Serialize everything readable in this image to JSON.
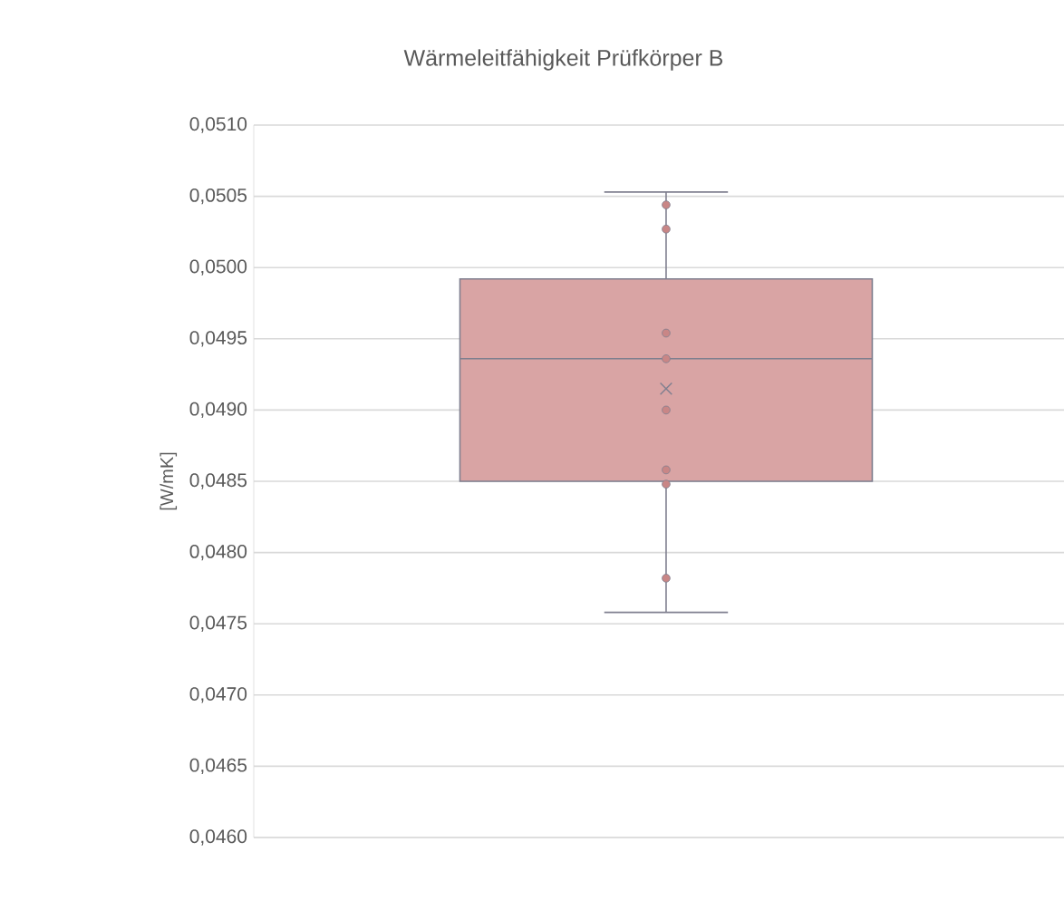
{
  "chart_data": {
    "type": "box",
    "title": "Wärmeleitfähigkeit Prüfkörper B",
    "ylabel": "[W/mK]",
    "categories": [
      null
    ],
    "boxes": [
      {
        "low": 0.04758,
        "q1": 0.0485,
        "median": 0.04936,
        "q3": 0.04992,
        "high": 0.05053,
        "mean": 0.04915,
        "outliers": [
          0.05044,
          0.05027,
          0.04954,
          0.04936,
          0.049,
          0.04858,
          0.04848,
          0.04782
        ]
      }
    ],
    "color": "#d9a4a4",
    "ylim": [
      0.046,
      0.051
    ],
    "yticks": [
      {
        "value": 0.046,
        "label": "0,0460"
      },
      {
        "value": 0.0465,
        "label": "0,0465"
      },
      {
        "value": 0.047,
        "label": "0,0470"
      },
      {
        "value": 0.0475,
        "label": "0,0475"
      },
      {
        "value": 0.048,
        "label": "0,0480"
      },
      {
        "value": 0.0485,
        "label": "0,0485"
      },
      {
        "value": 0.049,
        "label": "0,0490"
      },
      {
        "value": 0.0495,
        "label": "0,0495"
      },
      {
        "value": 0.05,
        "label": "0,0500"
      },
      {
        "value": 0.0505,
        "label": "0,0505"
      },
      {
        "value": 0.051,
        "label": "0,0510"
      }
    ],
    "grid": "y",
    "marker": "circle"
  }
}
